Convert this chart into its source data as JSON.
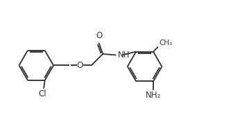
{
  "bg_color": "#ffffff",
  "line_color": "#3a3a3a",
  "line_width": 1.4,
  "font_size": 8.5,
  "fig_width": 3.46,
  "fig_height": 1.92,
  "dpi": 100,
  "xlim": [
    0,
    10.5
  ],
  "ylim": [
    0,
    6.0
  ]
}
